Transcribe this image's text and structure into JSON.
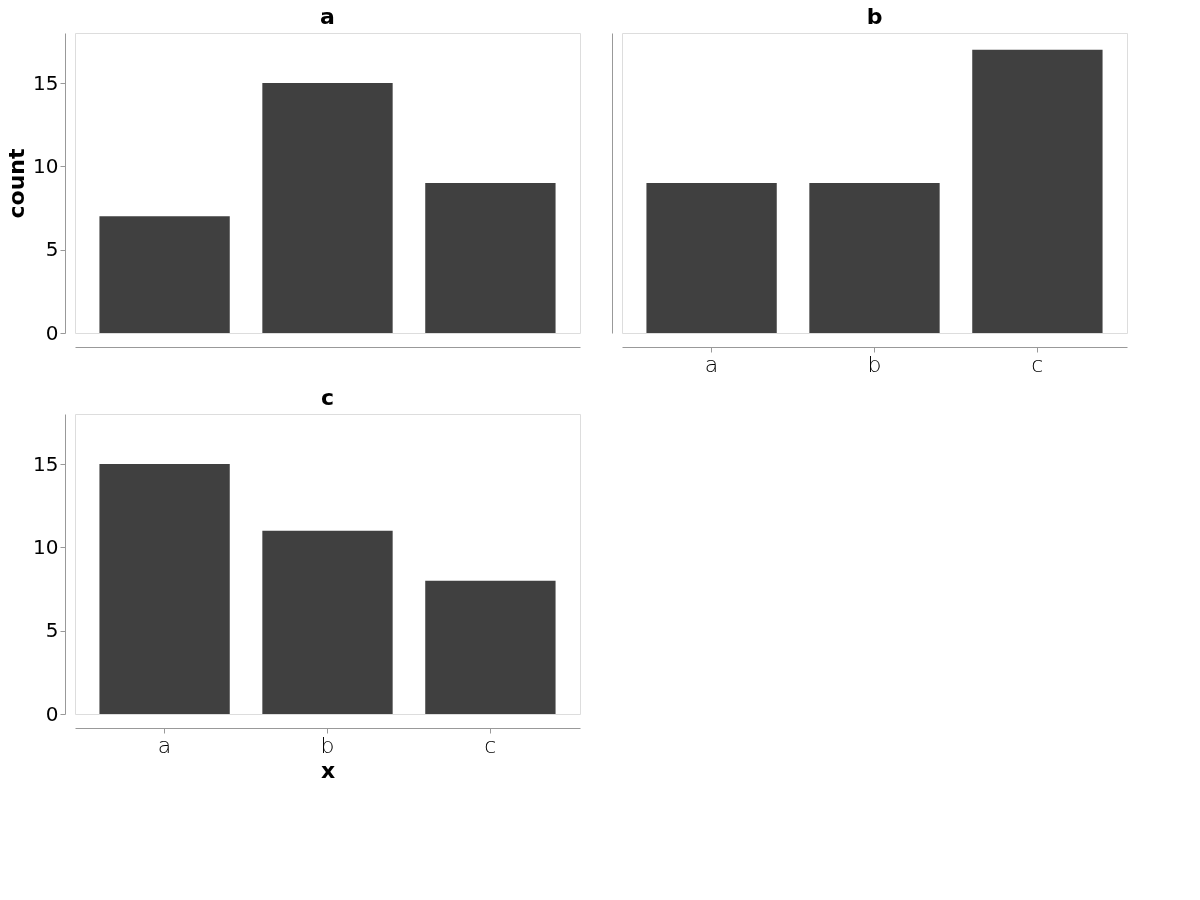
{
  "chart_data": [
    {
      "type": "bar",
      "title": "a",
      "ylabel": "count",
      "categories": [
        null,
        null,
        null
      ],
      "values": [
        7,
        15,
        9
      ],
      "color": "#404040",
      "ylim": [
        0,
        18
      ],
      "yticks": [
        0,
        5,
        10,
        15
      ],
      "tick_labels": "y",
      "grid": false
    },
    {
      "type": "bar",
      "title": "b",
      "categories": [
        "a",
        "b",
        "c"
      ],
      "values": [
        9,
        9,
        17
      ],
      "color": "#404040",
      "ylim": [
        0,
        18
      ],
      "yticks": [
        0,
        5,
        10,
        15
      ],
      "tick_labels": "x",
      "grid": false
    },
    {
      "type": "bar",
      "title": "c",
      "xlabel": "x",
      "categories": [
        "a",
        "b",
        "c"
      ],
      "values": [
        15,
        11,
        8
      ],
      "color": "#404040",
      "ylim": [
        0,
        18
      ],
      "yticks": [
        0,
        5,
        10,
        15
      ],
      "grid": false
    }
  ]
}
